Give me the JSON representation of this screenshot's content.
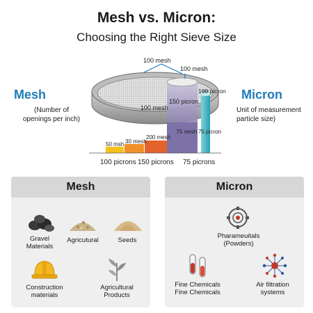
{
  "title": "Mesh vs. Micron:",
  "subtitle": "Choosing the Right Sieve Size",
  "mesh_side": {
    "heading": "Mesh",
    "description_line1": "(Number of",
    "description_line2": "openings per inch)"
  },
  "micron_side": {
    "heading": "Micron",
    "description_line1": "Unit of measurement",
    "description_line2": "particle size)"
  },
  "sieve_labels": {
    "top_left": "100 mesh",
    "top_right": "100 mesh",
    "inner_left": "100 mesh",
    "inner_center": "150 picron",
    "right_tube": "100 picron",
    "bar_4": "75 nesh",
    "right_bar": "75 picron"
  },
  "bars": [
    {
      "label": "50 msh",
      "color": "#f3c21d"
    },
    {
      "label": "30 mesh",
      "color": "#f0912a"
    },
    {
      "label": "200 mesh",
      "color": "#e4622c"
    }
  ],
  "bar_axis": [
    "100 picrons",
    "150 picrons",
    "75 picrons"
  ],
  "colors": {
    "accent_blue": "#1f7db8",
    "tube_teal": "#39b5c6",
    "bar_purple": "#8c7fb0"
  },
  "mesh_panel": {
    "heading": "Mesh",
    "items": [
      {
        "line1": "Gravel",
        "line2": "Materials",
        "icon": "gravel-icon"
      },
      {
        "line1": "Agricutural",
        "line2": "",
        "icon": "grain-pile-icon"
      },
      {
        "line1": "Seeds",
        "line2": "",
        "icon": "sand-pile-icon"
      },
      {
        "line1": "Construction",
        "line2": "materials",
        "icon": "hard-hat-icon"
      },
      {
        "line1": "Agricultural",
        "line2": "Products",
        "icon": "plant-icon"
      }
    ]
  },
  "micron_panel": {
    "heading": "Micron",
    "items": [
      {
        "line1": "Pharameuitals",
        "line2": "(Powders)",
        "icon": "pharma-gear-icon"
      },
      {
        "line1": "Fine Chemicals",
        "line2": "Fine Chemicals",
        "icon": "test-tubes-icon"
      },
      {
        "line1": "Air filtration",
        "line2": "systems",
        "icon": "air-filter-icon"
      }
    ]
  }
}
